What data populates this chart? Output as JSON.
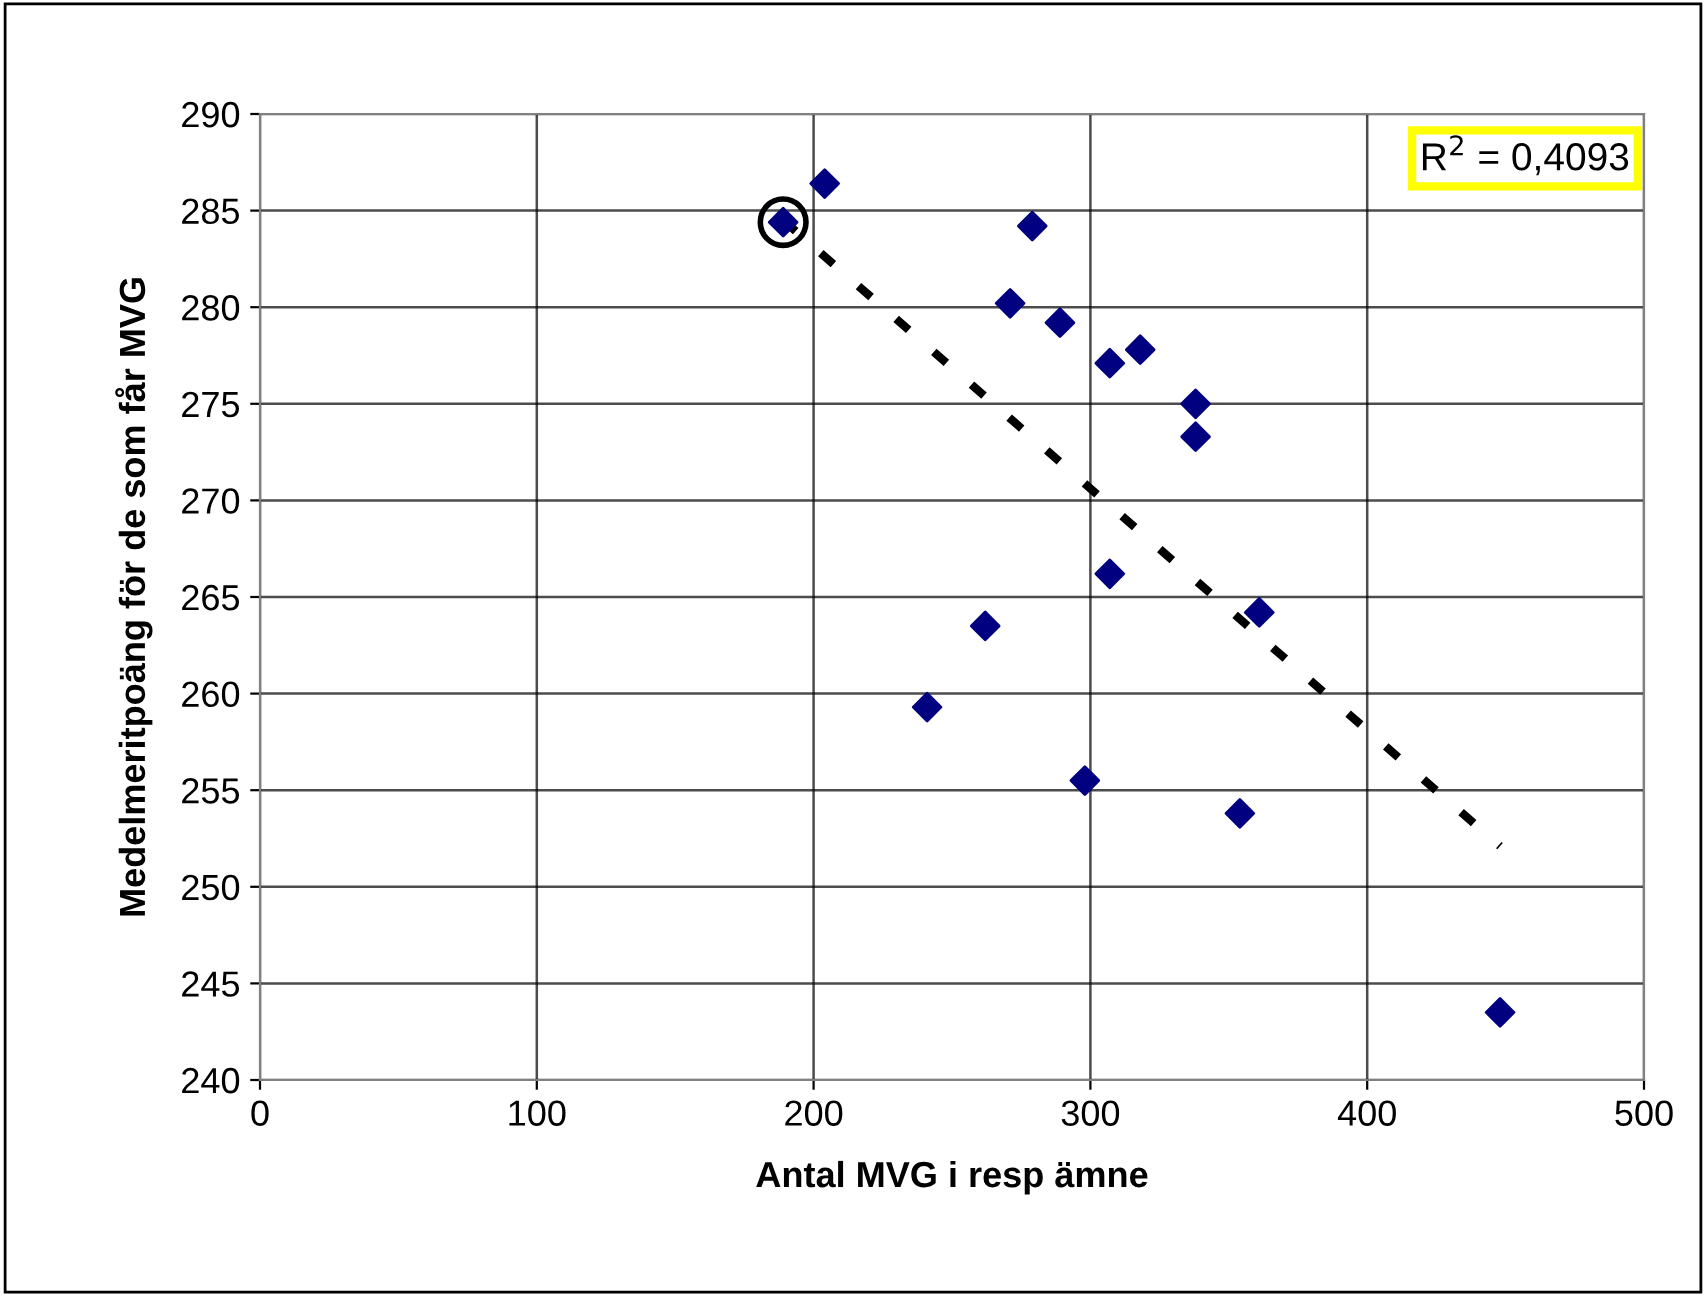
{
  "chart_data": {
    "type": "scatter",
    "xlabel": "Antal MVG i resp ämne",
    "ylabel": "Medelmeritpoäng för de som får MVG",
    "xlim": [
      0,
      500
    ],
    "xticks": [
      0,
      100,
      200,
      300,
      400,
      500
    ],
    "ylim": [
      240,
      290
    ],
    "yticks": [
      240,
      245,
      250,
      255,
      260,
      265,
      270,
      275,
      280,
      285,
      290
    ],
    "grid": true,
    "series": [
      {
        "marker": "diamond",
        "color": "#000080",
        "x": [
          189,
          204,
          279,
          271,
          289,
          307,
          318,
          338,
          338,
          307,
          262,
          241,
          298,
          361,
          354,
          448
        ],
        "values": [
          284.4,
          286.4,
          284.2,
          280.2,
          279.2,
          277.1,
          277.8,
          275.0,
          273.3,
          266.2,
          263.5,
          259.3,
          255.5,
          264.2,
          253.8,
          243.5
        ]
      },
      {
        "type": "line",
        "color": "#000000",
        "line_style": "dashed",
        "x": [
          189,
          448
        ],
        "values": [
          284.5,
          252.1
        ]
      }
    ],
    "annotations": [
      "R$^{2}$ = 0,4093"
    ]
  }
}
